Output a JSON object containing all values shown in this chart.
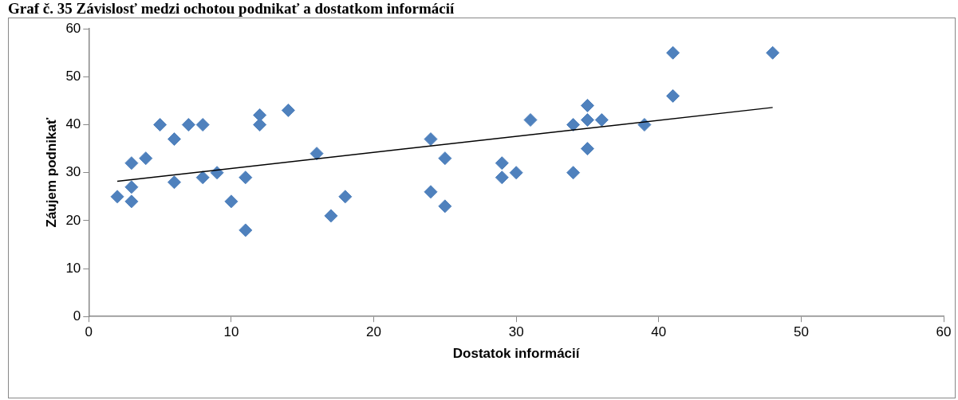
{
  "chart_data": {
    "type": "scatter",
    "title": "Graf č. 35 Závislosť  medzi ochotou podnikať  a dostatkom informácií",
    "xlabel": "Dostatok informácií",
    "ylabel": "Záujem podnikať",
    "xlim": [
      0,
      60
    ],
    "xticks": [
      0,
      10,
      20,
      30,
      40,
      50,
      60
    ],
    "ylim": [
      0,
      60
    ],
    "yticks": [
      0,
      10,
      20,
      30,
      40,
      50,
      60
    ],
    "grid": false,
    "legend": false,
    "series": [
      {
        "marker": "diamond",
        "color": "#4f81bd",
        "x": [
          2,
          3,
          3,
          3,
          4,
          5,
          6,
          6,
          7,
          8,
          8,
          9,
          10,
          11,
          11,
          12,
          12,
          14,
          16,
          17,
          18,
          24,
          24,
          25,
          25,
          29,
          29,
          30,
          31,
          34,
          34,
          35,
          35,
          35,
          36,
          39,
          41,
          41,
          48
        ],
        "values": [
          25,
          32,
          27,
          24,
          33,
          40,
          37,
          28,
          40,
          40,
          29,
          30,
          24,
          29,
          18,
          42,
          40,
          43,
          34,
          21,
          25,
          37,
          26,
          33,
          23,
          32,
          29,
          30,
          41,
          40,
          30,
          44,
          41,
          35,
          41,
          40,
          55,
          46,
          55
        ]
      },
      {
        "type": "line",
        "marker": "none",
        "color": "#000000",
        "x": [
          2,
          48
        ],
        "values": [
          28.2,
          43.6
        ]
      }
    ]
  }
}
